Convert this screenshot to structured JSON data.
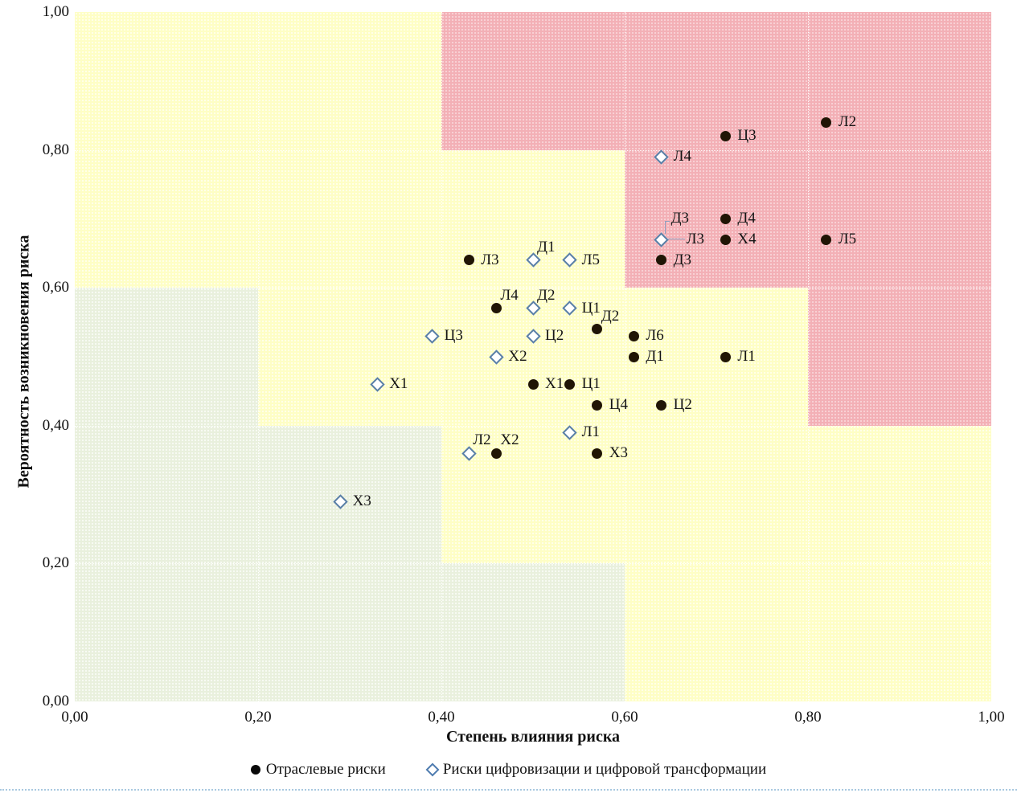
{
  "legend": [
    {
      "marker": "circle",
      "label": "Отраслевые риски"
    },
    {
      "marker": "diamond",
      "label": "Риски цифровизации и цифровой трансформации"
    }
  ],
  "colors": {
    "zone_low": "#E9F0DD",
    "zone_medium": "#FEFEC5",
    "zone_high": "#F3B0B6",
    "circle_marker": "#201505",
    "diamond_stroke": "#597FA7",
    "gridline": "#FFFFFF",
    "callout_line": "#8F9FBF",
    "bottom_rule": "#A8C8E0"
  },
  "chart_data": {
    "type": "scatter",
    "title": "",
    "xlabel": "Степень влияния риска",
    "ylabel": "Вероятность возникновения риска",
    "xlim": [
      0,
      1
    ],
    "ylim": [
      0,
      1
    ],
    "x_ticks": [
      "0,00",
      "0,20",
      "0,40",
      "0,60",
      "0,80",
      "1,00"
    ],
    "y_ticks": [
      "0,00",
      "0,20",
      "0,40",
      "0,60",
      "0,80",
      "1,00"
    ],
    "grid": true,
    "legend_position": "bottom",
    "zones": [
      {
        "level": "medium",
        "x0": 0.0,
        "y0": 0.8,
        "x1": 0.4,
        "y1": 1.0
      },
      {
        "level": "high",
        "x0": 0.4,
        "y0": 0.8,
        "x1": 1.0,
        "y1": 1.0
      },
      {
        "level": "medium",
        "x0": 0.0,
        "y0": 0.6,
        "x1": 0.6,
        "y1": 0.8
      },
      {
        "level": "high",
        "x0": 0.6,
        "y0": 0.6,
        "x1": 1.0,
        "y1": 0.8
      },
      {
        "level": "low",
        "x0": 0.0,
        "y0": 0.4,
        "x1": 0.2,
        "y1": 0.6
      },
      {
        "level": "medium",
        "x0": 0.2,
        "y0": 0.4,
        "x1": 0.8,
        "y1": 0.6
      },
      {
        "level": "high",
        "x0": 0.8,
        "y0": 0.4,
        "x1": 1.0,
        "y1": 0.6
      },
      {
        "level": "low",
        "x0": 0.0,
        "y0": 0.2,
        "x1": 0.4,
        "y1": 0.4
      },
      {
        "level": "medium",
        "x0": 0.4,
        "y0": 0.2,
        "x1": 1.0,
        "y1": 0.4
      },
      {
        "level": "low",
        "x0": 0.0,
        "y0": 0.0,
        "x1": 0.6,
        "y1": 0.2
      },
      {
        "level": "medium",
        "x0": 0.6,
        "y0": 0.0,
        "x1": 1.0,
        "y1": 0.2
      }
    ],
    "series": [
      {
        "name": "Отраслевые риски",
        "marker": "circle",
        "points": [
          {
            "label": "Л2",
            "x": 0.82,
            "y": 0.84,
            "label_pos": "r"
          },
          {
            "label": "Ц3",
            "x": 0.71,
            "y": 0.82,
            "label_pos": "r"
          },
          {
            "label": "Д4",
            "x": 0.71,
            "y": 0.7,
            "label_pos": "r"
          },
          {
            "label": "Х4",
            "x": 0.71,
            "y": 0.67,
            "label_pos": "r"
          },
          {
            "label": "Л5",
            "x": 0.82,
            "y": 0.67,
            "label_pos": "r"
          },
          {
            "label": "Д3",
            "x": 0.64,
            "y": 0.64,
            "label_pos": "r"
          },
          {
            "label": "Л3",
            "x": 0.43,
            "y": 0.64,
            "label_pos": "r"
          },
          {
            "label": "Л4",
            "x": 0.46,
            "y": 0.57,
            "label_pos": "ar"
          },
          {
            "label": "Д2",
            "x": 0.57,
            "y": 0.54,
            "label_pos": "ar"
          },
          {
            "label": "Л6",
            "x": 0.61,
            "y": 0.53,
            "label_pos": "r"
          },
          {
            "label": "Д1",
            "x": 0.61,
            "y": 0.5,
            "label_pos": "r"
          },
          {
            "label": "Л1",
            "x": 0.71,
            "y": 0.5,
            "label_pos": "r"
          },
          {
            "label": "Х1",
            "x": 0.5,
            "y": 0.46,
            "label_pos": "r"
          },
          {
            "label": "Ц1",
            "x": 0.54,
            "y": 0.46,
            "label_pos": "r"
          },
          {
            "label": "Ц4",
            "x": 0.57,
            "y": 0.43,
            "label_pos": "r"
          },
          {
            "label": "Ц2",
            "x": 0.64,
            "y": 0.43,
            "label_pos": "r"
          },
          {
            "label": "Х2",
            "x": 0.46,
            "y": 0.36,
            "label_pos": "ar"
          },
          {
            "label": "Х3",
            "x": 0.57,
            "y": 0.36,
            "label_pos": "r"
          }
        ]
      },
      {
        "name": "Риски цифровизации и цифровой трансформации",
        "marker": "diamond",
        "points": [
          {
            "label": "Л4",
            "x": 0.64,
            "y": 0.79,
            "label_pos": "r"
          },
          {
            "label": "Д3",
            "x": 0.64,
            "y": 0.67,
            "label_pos": "callout-above"
          },
          {
            "label": "Л3",
            "x": 0.64,
            "y": 0.67,
            "label_pos": "callout-right"
          },
          {
            "label": "Д1",
            "x": 0.5,
            "y": 0.64,
            "label_pos": "ar"
          },
          {
            "label": "Л5",
            "x": 0.54,
            "y": 0.64,
            "label_pos": "r"
          },
          {
            "label": "Д2",
            "x": 0.5,
            "y": 0.57,
            "label_pos": "ar"
          },
          {
            "label": "Ц1",
            "x": 0.54,
            "y": 0.57,
            "label_pos": "r"
          },
          {
            "label": "Ц3",
            "x": 0.39,
            "y": 0.53,
            "label_pos": "r"
          },
          {
            "label": "Ц2",
            "x": 0.5,
            "y": 0.53,
            "label_pos": "r"
          },
          {
            "label": "Х2",
            "x": 0.46,
            "y": 0.5,
            "label_pos": "r"
          },
          {
            "label": "Х1",
            "x": 0.33,
            "y": 0.46,
            "label_pos": "r"
          },
          {
            "label": "Л1",
            "x": 0.54,
            "y": 0.39,
            "label_pos": "r"
          },
          {
            "label": "Л2",
            "x": 0.43,
            "y": 0.36,
            "label_pos": "ar"
          },
          {
            "label": "Х3",
            "x": 0.29,
            "y": 0.29,
            "label_pos": "r"
          }
        ]
      }
    ]
  }
}
